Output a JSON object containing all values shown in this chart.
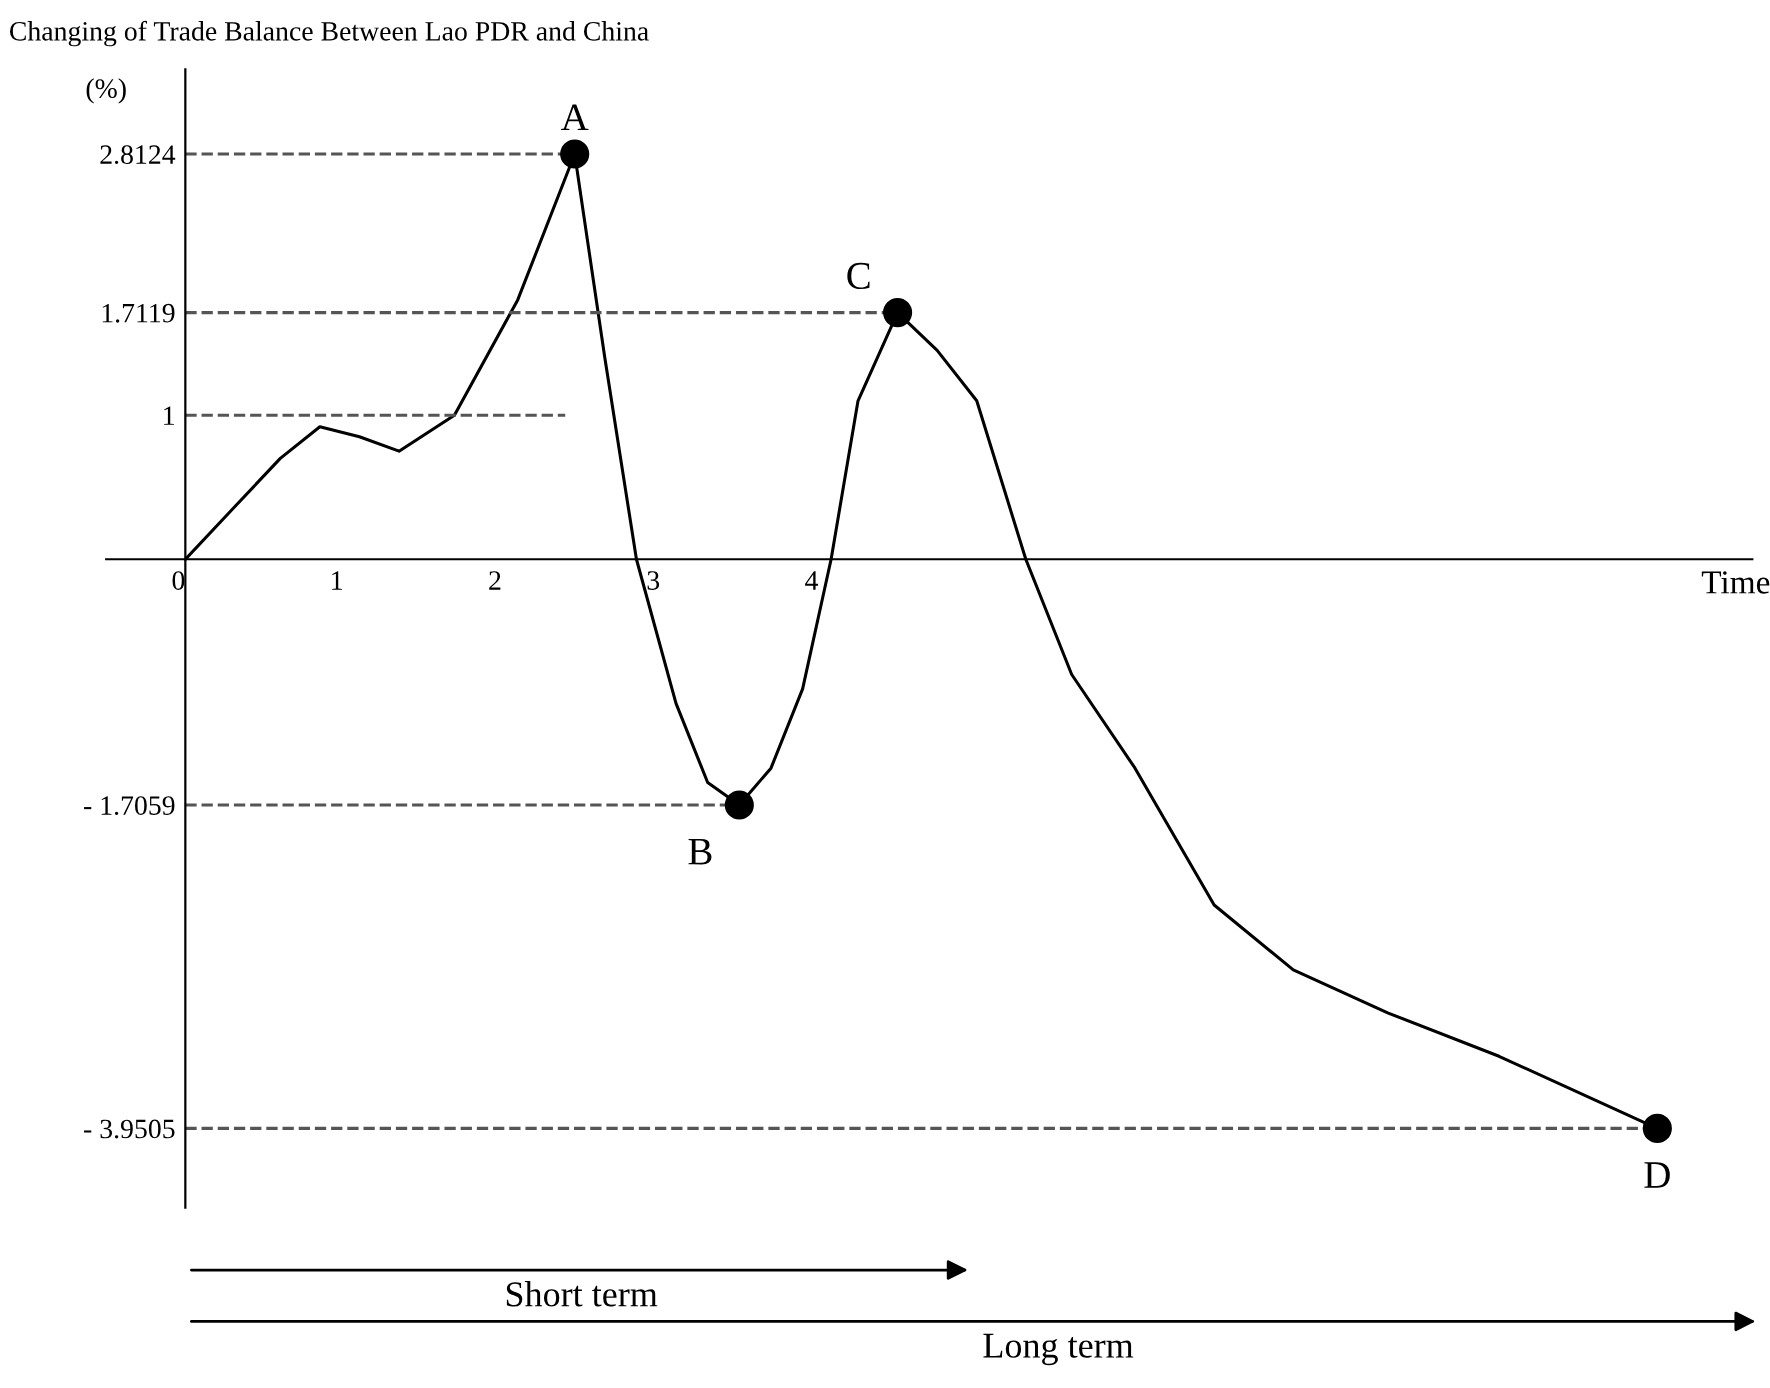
{
  "chart_data": {
    "type": "line",
    "title": "Changing of Trade Balance Between Lao PDR and China",
    "xlabel": "Time",
    "ylabel": "(%)",
    "xlim": [
      -0.5,
      9.9
    ],
    "ylim": [
      -4.5,
      3.4
    ],
    "xticks": [
      0,
      1,
      2,
      3,
      4
    ],
    "yticks": [
      {
        "value": 2.8124,
        "label": "2.8124"
      },
      {
        "value": 1.7119,
        "label": "1.7119"
      },
      1,
      {
        "value": -1.7059,
        "label": "- 1.7059"
      },
      {
        "value": -3.9505,
        "label": "- 3.9505"
      }
    ],
    "grid": false,
    "legend": false,
    "series": [
      {
        "color": "#000000",
        "x": [
          0,
          0.3,
          0.6,
          0.85,
          1.1,
          1.35,
          1.7,
          2.1,
          2.46,
          2.65,
          2.85,
          3.1,
          3.3,
          3.5,
          3.7,
          3.9,
          4.08,
          4.25,
          4.5,
          4.75,
          5.0,
          5.31,
          5.6,
          6.0,
          6.5,
          7.0,
          7.6,
          8.3,
          9.3
        ],
        "values": [
          0,
          0.35,
          0.7,
          0.92,
          0.85,
          0.75,
          1.0,
          1.8,
          2.8124,
          1.4,
          0,
          -1.0,
          -1.55,
          -1.7059,
          -1.45,
          -0.9,
          0,
          1.1,
          1.7119,
          1.45,
          1.1,
          0,
          -0.8,
          -1.45,
          -2.4,
          -2.85,
          -3.15,
          -3.45,
          -3.9505
        ]
      },
      {
        "type": "line",
        "line_style": "dashed",
        "color": "#555555",
        "x": [
          0,
          2.46
        ],
        "values": [
          2.8124,
          2.8124
        ]
      },
      {
        "type": "line",
        "line_style": "dashed",
        "color": "#555555",
        "x": [
          0,
          4.5
        ],
        "values": [
          1.7119,
          1.7119
        ]
      },
      {
        "type": "line",
        "line_style": "dashed",
        "color": "#555555",
        "x": [
          0,
          2.4
        ],
        "values": [
          1,
          1
        ]
      },
      {
        "type": "line",
        "line_style": "dashed",
        "color": "#555555",
        "x": [
          0,
          3.5
        ],
        "values": [
          -1.7059,
          -1.7059
        ]
      },
      {
        "type": "line",
        "line_style": "dashed",
        "color": "#555555",
        "x": [
          0,
          9.3
        ],
        "values": [
          -3.9505,
          -3.9505
        ]
      },
      {
        "type": "scatter",
        "marker": "circle",
        "color": "#000000",
        "x": [
          2.46,
          3.5,
          4.5,
          9.3
        ],
        "values": [
          2.8124,
          -1.7059,
          1.7119,
          -3.9505
        ]
      }
    ],
    "annotations": [
      {
        "text": "A",
        "x": 2.46,
        "y": 2.8124
      },
      {
        "text": "B",
        "x": 3.5,
        "y": -1.7059
      },
      {
        "text": "C",
        "x": 4.5,
        "y": 1.7119
      },
      {
        "text": "D",
        "x": 9.3,
        "y": -3.9505
      },
      "Short term",
      "Long term"
    ]
  }
}
